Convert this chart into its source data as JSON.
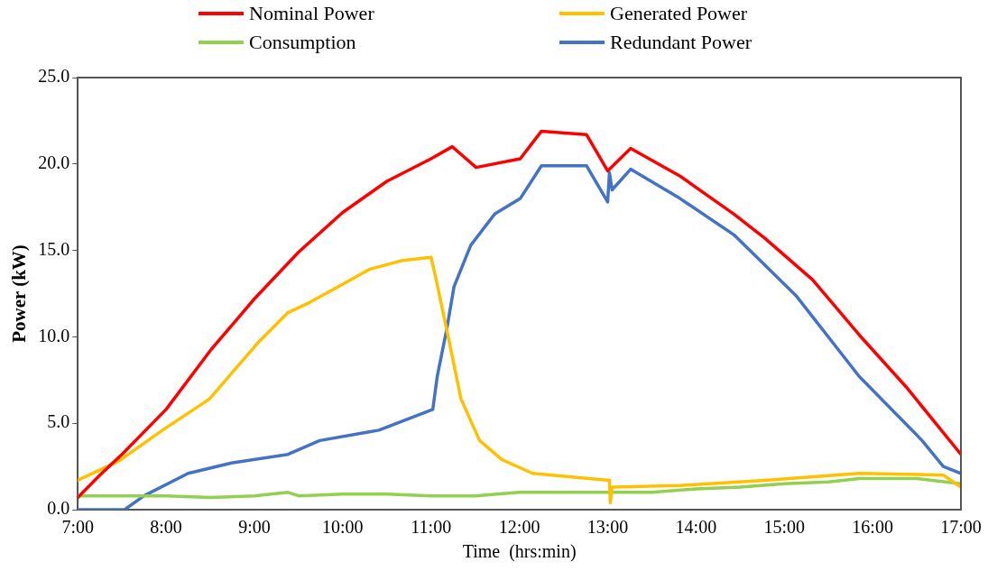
{
  "chart_data": {
    "type": "line",
    "xlabel": "Time  (hrs:min)",
    "ylabel": "Power (kW)",
    "xlim": [
      7,
      17
    ],
    "xticks": [
      {
        "value": 7,
        "label": "7:00"
      },
      {
        "value": 8,
        "label": "8:00"
      },
      {
        "value": 9,
        "label": "9:00"
      },
      {
        "value": 10,
        "label": "10:00"
      },
      {
        "value": 11,
        "label": "11:00"
      },
      {
        "value": 12,
        "label": "12:00"
      },
      {
        "value": 13,
        "label": "13:00"
      },
      {
        "value": 14,
        "label": "14:00"
      },
      {
        "value": 15,
        "label": "15:00"
      },
      {
        "value": 16,
        "label": "16:00"
      },
      {
        "value": 17,
        "label": "17:00"
      }
    ],
    "ylim": [
      0,
      25
    ],
    "yticks": [
      {
        "value": 0,
        "label": "0.0"
      },
      {
        "value": 5,
        "label": "5.0"
      },
      {
        "value": 10,
        "label": "10.0"
      },
      {
        "value": 15,
        "label": "15.0"
      },
      {
        "value": 20,
        "label": "20.0"
      },
      {
        "value": 25,
        "label": "25.0"
      }
    ],
    "grid": false,
    "legend": "top",
    "marker": "none",
    "line_style": "solid",
    "series": [
      {
        "name": "Nominal Power",
        "color": "#ff0000",
        "x": [
          7,
          7.25,
          7.5,
          8,
          8.5,
          9,
          9.5,
          10,
          10.5,
          11,
          11.24,
          11.51,
          12.01,
          12.25,
          12.76,
          13,
          13.26,
          13.82,
          14.43,
          14.78,
          15.32,
          15.85,
          16.38,
          17
        ],
        "values": [
          0.7,
          2.0,
          3.2,
          5.8,
          9.2,
          12.2,
          14.9,
          17.2,
          19.0,
          20.3,
          21.0,
          19.8,
          20.3,
          21.9,
          21.7,
          19.6,
          20.9,
          19.3,
          17.1,
          15.7,
          13.3,
          10.1,
          7.1,
          3.2
        ]
      },
      {
        "name": "Generated Power",
        "color": "#ffc000",
        "x": [
          7,
          7.46,
          7.96,
          8.49,
          9.03,
          9.38,
          9.63,
          10.02,
          10.3,
          10.66,
          11,
          11.05,
          11.19,
          11.34,
          11.55,
          11.8,
          12.15,
          12.79,
          13.02,
          13.03,
          13.05,
          13.82,
          14.78,
          15.85,
          16.8,
          17
        ],
        "values": [
          1.7,
          2.8,
          4.6,
          6.4,
          9.6,
          11.4,
          12.0,
          13.1,
          13.9,
          14.4,
          14.6,
          13.5,
          10.1,
          6.4,
          4.0,
          2.9,
          2.1,
          1.8,
          1.7,
          0.4,
          1.3,
          1.4,
          1.7,
          2.1,
          2.0,
          1.3
        ]
      },
      {
        "name": "Consumption",
        "color": "#92d050",
        "x": [
          7,
          7.5,
          8,
          8.5,
          9,
          9.38,
          9.5,
          10,
          10.5,
          11,
          11.5,
          12,
          12.5,
          13,
          13.5,
          14,
          14.5,
          15,
          15.5,
          15.85,
          16.5,
          17
        ],
        "values": [
          0.8,
          0.8,
          0.8,
          0.7,
          0.8,
          1.0,
          0.8,
          0.9,
          0.9,
          0.8,
          0.8,
          1.0,
          1.0,
          1.0,
          1.0,
          1.2,
          1.3,
          1.5,
          1.6,
          1.8,
          1.8,
          1.5
        ]
      },
      {
        "name": "Redundant Power",
        "color": "#4472c4",
        "x": [
          7,
          7.53,
          7.75,
          8.25,
          8.74,
          9.38,
          9.74,
          10.3,
          10.41,
          11.02,
          11.07,
          11.18,
          11.26,
          11.45,
          11.72,
          12.01,
          12.25,
          12.76,
          13,
          13.02,
          13.05,
          13.26,
          13.82,
          14.43,
          15.13,
          15.85,
          16.56,
          16.8,
          17
        ],
        "values": [
          0,
          0,
          0.8,
          2.1,
          2.7,
          3.2,
          4.0,
          4.5,
          4.6,
          5.8,
          7.7,
          10.5,
          12.9,
          15.3,
          17.1,
          18.0,
          19.9,
          19.9,
          17.8,
          19.5,
          18.5,
          19.7,
          18.0,
          15.9,
          12.4,
          7.7,
          4.0,
          2.5,
          2.1
        ]
      }
    ]
  }
}
